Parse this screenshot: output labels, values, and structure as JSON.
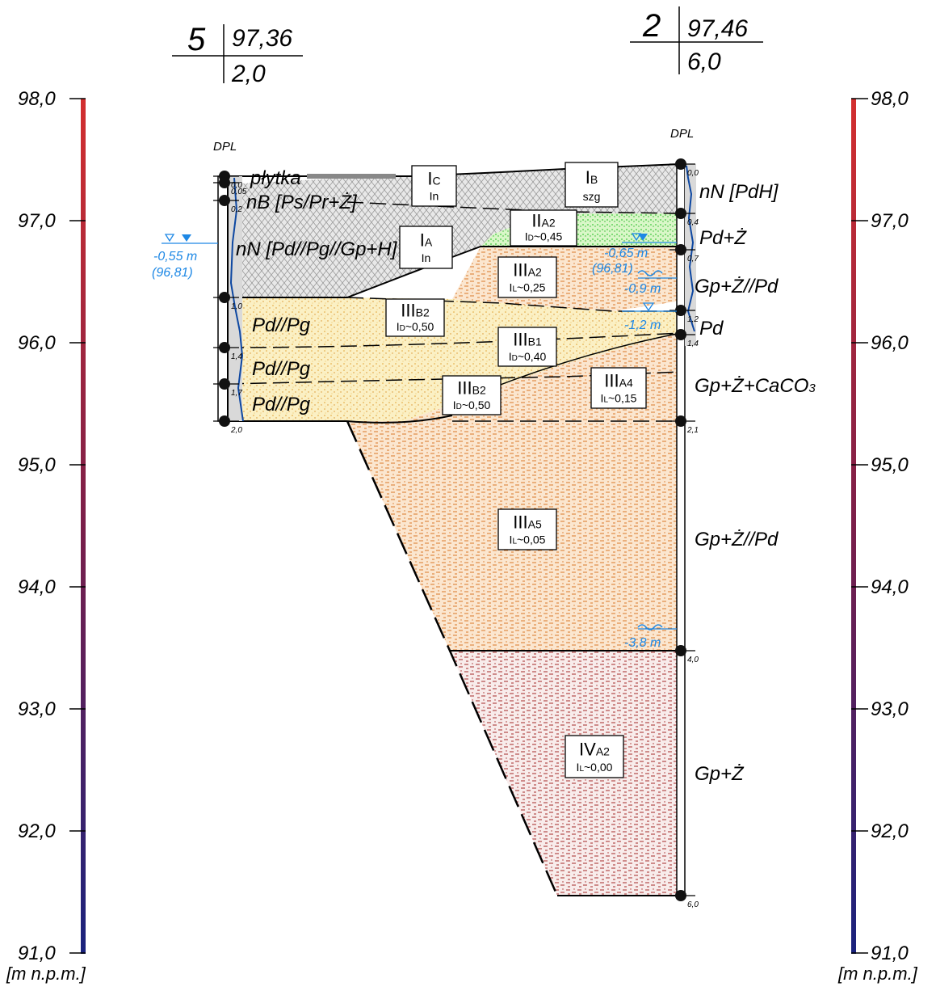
{
  "boreholes": {
    "left": {
      "number": "5",
      "elevation": "97,36",
      "depth": "2,0",
      "method": "DPL",
      "depth_marks": [
        "0,0",
        "0,05",
        "0,2",
        "1,0",
        "1,4",
        "1,7",
        "2,0"
      ],
      "water": {
        "depth": "-0,55 m",
        "elevation": "(96,81)"
      }
    },
    "right": {
      "number": "2",
      "elevation": "97,46",
      "depth": "6,0",
      "method": "DPL",
      "depth_marks": [
        "0,0",
        "0,4",
        "0,7",
        "1,2",
        "1,4",
        "2,1",
        "4,0",
        "6,0"
      ],
      "water": {
        "depth": "-0,65 m",
        "elevation": "(96,81)"
      },
      "seepage": [
        "-0,9 m",
        "-1,2 m",
        "-3,8 m"
      ]
    }
  },
  "scale": {
    "ticks": [
      "98,0",
      "97,0",
      "96,0",
      "95,0",
      "94,0",
      "93,0",
      "92,0",
      "91,0"
    ],
    "unit": "[m n.p.m.]"
  },
  "soil_labels": {
    "left": [
      "płytka",
      "nB [Ps/Pr+Ż]",
      "nN [Pd//Pg//Gp+H]",
      "Pd//Pg",
      "Pd//Pg",
      "Pd//Pg"
    ],
    "right": [
      "nN [PdH]",
      "Pd+Ż",
      "Gp+Ż//Pd",
      "Pd",
      "Gp+Ż+CaCO",
      "3",
      "Gp+Ż//Pd",
      "Gp+Ż"
    ]
  },
  "layer_boxes": {
    "ic": {
      "main": "I",
      "sub": "C",
      "line2": "In"
    },
    "ib": {
      "main": "I",
      "sub": "B",
      "line2": "szg"
    },
    "ia": {
      "main": "I",
      "sub": "A",
      "line2": "In"
    },
    "iia2": {
      "main": "II",
      "sub": "A2",
      "line2": "I",
      "line2sub": "D",
      "line2val": "~0,45"
    },
    "iiia2": {
      "main": "III",
      "sub": "A2",
      "line2": "I",
      "line2sub": "L",
      "line2val": "~0,25"
    },
    "iiib2a": {
      "main": "III",
      "sub": "B2",
      "line2": "I",
      "line2sub": "D",
      "line2val": "~0,50"
    },
    "iiib1": {
      "main": "III",
      "sub": "B1",
      "line2": "I",
      "line2sub": "D",
      "line2val": "~0,40"
    },
    "iiib2b": {
      "main": "III",
      "sub": "B2",
      "line2": "I",
      "line2sub": "D",
      "line2val": "~0,50"
    },
    "iiia4": {
      "main": "III",
      "sub": "A4",
      "line2": "I",
      "line2sub": "L",
      "line2val": "~0,15"
    },
    "iiia5": {
      "main": "III",
      "sub": "A5",
      "line2": "I",
      "line2sub": "L",
      "line2val": "~0,05"
    },
    "iva2": {
      "main": "IV",
      "sub": "A2",
      "line2": "I",
      "line2sub": "L",
      "line2val": "~0,00"
    }
  },
  "colors": {
    "line": "#000000",
    "water": "#1e88e5",
    "fill_gray": "#cfcfcf",
    "fill_sand": "#f5e6b0",
    "fill_green": "#b6f0a0",
    "fill_clay_orange": "#f0c79a",
    "fill_clay_red": "#d8a0a0",
    "scale_top": "#c0392b",
    "scale_bottom": "#1a237e"
  }
}
